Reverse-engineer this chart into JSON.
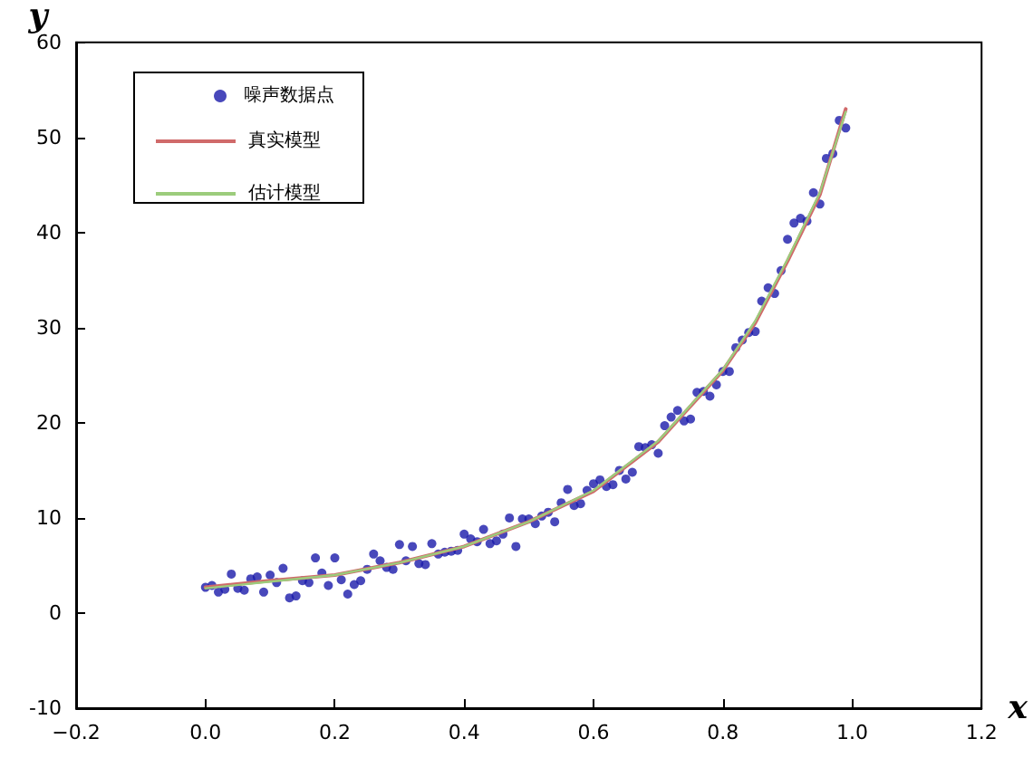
{
  "chart_data": {
    "type": "scatter",
    "xlabel": "x",
    "ylabel": "y",
    "legend": "top left",
    "grid": false,
    "xlim": [
      -0.2,
      1.2
    ],
    "xticks": [
      {
        "value": -0.2,
        "label": "−0.2"
      },
      {
        "value": 0,
        "label": "0.0"
      },
      {
        "value": 0.2,
        "label": "0.2"
      },
      {
        "value": 0.4,
        "label": "0.4"
      },
      {
        "value": 0.6,
        "label": "0.6"
      },
      {
        "value": 0.8,
        "label": "0.8"
      },
      {
        "value": 1,
        "label": "1.0"
      },
      {
        "value": 1.2,
        "label": "1.2"
      }
    ],
    "ylim": [
      -10,
      60
    ],
    "yticks": [
      -10,
      0,
      10,
      20,
      30,
      40,
      50,
      60
    ],
    "x": [
      0,
      0.01,
      0.02,
      0.03,
      0.04,
      0.05,
      0.06,
      0.07,
      0.08,
      0.09,
      0.1,
      0.11,
      0.12,
      0.13,
      0.14,
      0.15,
      0.16,
      0.17,
      0.18,
      0.19,
      0.2,
      0.21,
      0.22,
      0.23,
      0.24,
      0.25,
      0.26,
      0.27,
      0.28,
      0.29,
      0.3,
      0.31,
      0.32,
      0.33,
      0.34,
      0.35,
      0.36,
      0.37,
      0.38,
      0.39,
      0.4,
      0.41,
      0.42,
      0.43,
      0.44,
      0.45,
      0.46,
      0.47,
      0.48,
      0.49,
      0.5,
      0.51,
      0.52,
      0.53,
      0.54,
      0.55,
      0.56,
      0.57,
      0.58,
      0.59,
      0.6,
      0.61,
      0.62,
      0.63,
      0.64,
      0.65,
      0.66,
      0.67,
      0.68,
      0.69,
      0.7,
      0.71,
      0.72,
      0.73,
      0.74,
      0.75,
      0.76,
      0.77,
      0.78,
      0.79,
      0.8,
      0.81,
      0.82,
      0.83,
      0.84,
      0.85,
      0.86,
      0.87,
      0.88,
      0.89,
      0.9,
      0.91,
      0.92,
      0.93,
      0.94,
      0.95,
      0.96,
      0.97,
      0.98,
      0.99
    ],
    "series": [
      {
        "name": "噪声数据点",
        "marker": "circle",
        "color": "#1a1aaa",
        "values": [
          2.7,
          2.9,
          2.2,
          2.5,
          4.1,
          2.6,
          2.4,
          3.6,
          3.8,
          2.2,
          4.0,
          3.2,
          4.7,
          1.6,
          1.8,
          3.4,
          3.2,
          5.8,
          4.2,
          2.9,
          5.8,
          3.5,
          2.0,
          3.0,
          3.4,
          4.6,
          6.2,
          5.5,
          4.8,
          4.6,
          7.2,
          5.5,
          7.0,
          5.2,
          5.1,
          7.3,
          6.2,
          6.4,
          6.5,
          6.6,
          8.3,
          7.8,
          7.5,
          8.8,
          7.3,
          7.6,
          8.3,
          10.0,
          7.0,
          9.9,
          9.9,
          9.4,
          10.2,
          10.6,
          9.6,
          11.6,
          13.0,
          11.3,
          11.5,
          12.9,
          13.6,
          14.0,
          13.3,
          13.5,
          15.0,
          14.1,
          14.8,
          17.5,
          17.4,
          17.7,
          16.8,
          19.7,
          20.6,
          21.3,
          20.2,
          20.4,
          23.2,
          23.3,
          22.8,
          24.0,
          25.4,
          25.4,
          27.9,
          28.7,
          29.5,
          29.6,
          32.8,
          34.2,
          33.6,
          36.0,
          39.3,
          41.0,
          41.5,
          41.2,
          44.2,
          43.0,
          47.8,
          48.3,
          51.8,
          51.0
        ]
      },
      {
        "name": "真实模型",
        "type": "line",
        "marker": "none",
        "line_style": "solid",
        "color": "#d06a6a",
        "x": [
          0,
          0.1,
          0.2,
          0.3,
          0.4,
          0.5,
          0.6,
          0.7,
          0.8,
          0.85,
          0.9,
          0.95,
          0.99
        ],
        "values": [
          2.7,
          3.4,
          4.0,
          5.3,
          7.0,
          9.6,
          12.8,
          18.0,
          25.5,
          30.5,
          37.0,
          44.0,
          53.0
        ]
      },
      {
        "name": "估计模型",
        "type": "line",
        "marker": "none",
        "line_style": "solid",
        "color": "#9ccc7c",
        "x": [
          0,
          0.1,
          0.2,
          0.3,
          0.4,
          0.5,
          0.6,
          0.7,
          0.8,
          0.85,
          0.9,
          0.95,
          0.99
        ],
        "values": [
          2.6,
          3.3,
          4.0,
          5.3,
          7.0,
          9.6,
          12.9,
          18.1,
          25.6,
          30.7,
          37.2,
          44.2,
          52.7
        ]
      }
    ]
  }
}
